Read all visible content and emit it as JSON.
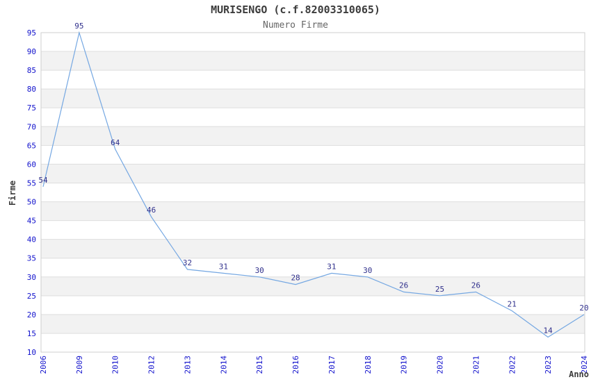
{
  "chart_data": {
    "type": "line",
    "title": "MURISENGO (c.f.82003310065)",
    "subtitle": "Numero Firme",
    "xlabel": "Anno",
    "ylabel": "Firme",
    "categories": [
      "2006",
      "2009",
      "2010",
      "2012",
      "2013",
      "2014",
      "2015",
      "2016",
      "2017",
      "2018",
      "2019",
      "2020",
      "2021",
      "2022",
      "2023",
      "2024"
    ],
    "values": [
      54,
      95,
      64,
      46,
      32,
      31,
      30,
      28,
      31,
      30,
      26,
      25,
      26,
      21,
      14,
      20
    ],
    "ylim": [
      10,
      95
    ],
    "ytick_step": 5,
    "grid": "horizontal-alternating-bands",
    "legend": "none",
    "colors": {
      "line": "#74a7e2",
      "band": "#f2f2f2",
      "gridline": "#dedede",
      "plot_border": "#cfcfcf",
      "tick_label": "#1111cc",
      "data_label": "#30308c",
      "title": "#3c3c3c",
      "subtitle": "#666666",
      "background": "#ffffff"
    }
  }
}
